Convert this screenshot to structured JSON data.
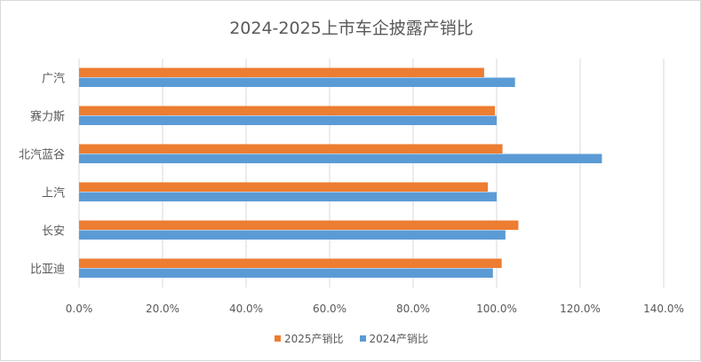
{
  "chart_data": {
    "type": "bar",
    "orientation": "horizontal",
    "title": "2024-2025上市车企披露产销比",
    "categories": [
      "广汽",
      "赛力斯",
      "北汽蓝谷",
      "上汽",
      "长安",
      "比亚迪"
    ],
    "series": [
      {
        "name": "2025产销比",
        "color": "#ED7D31",
        "values": [
          97.0,
          99.6,
          101.4,
          97.9,
          105.2,
          101.2
        ]
      },
      {
        "name": "2024产销比",
        "color": "#5B9BD5",
        "values": [
          104.4,
          100.0,
          125.2,
          100.0,
          102.1,
          99.1
        ]
      }
    ],
    "xlim": [
      0,
      140
    ],
    "xticks": [
      "0.0%",
      "20.0%",
      "40.0%",
      "60.0%",
      "80.0%",
      "100.0%",
      "120.0%",
      "140.0%"
    ],
    "grid": true,
    "legend_position": "bottom",
    "unit": "%"
  }
}
